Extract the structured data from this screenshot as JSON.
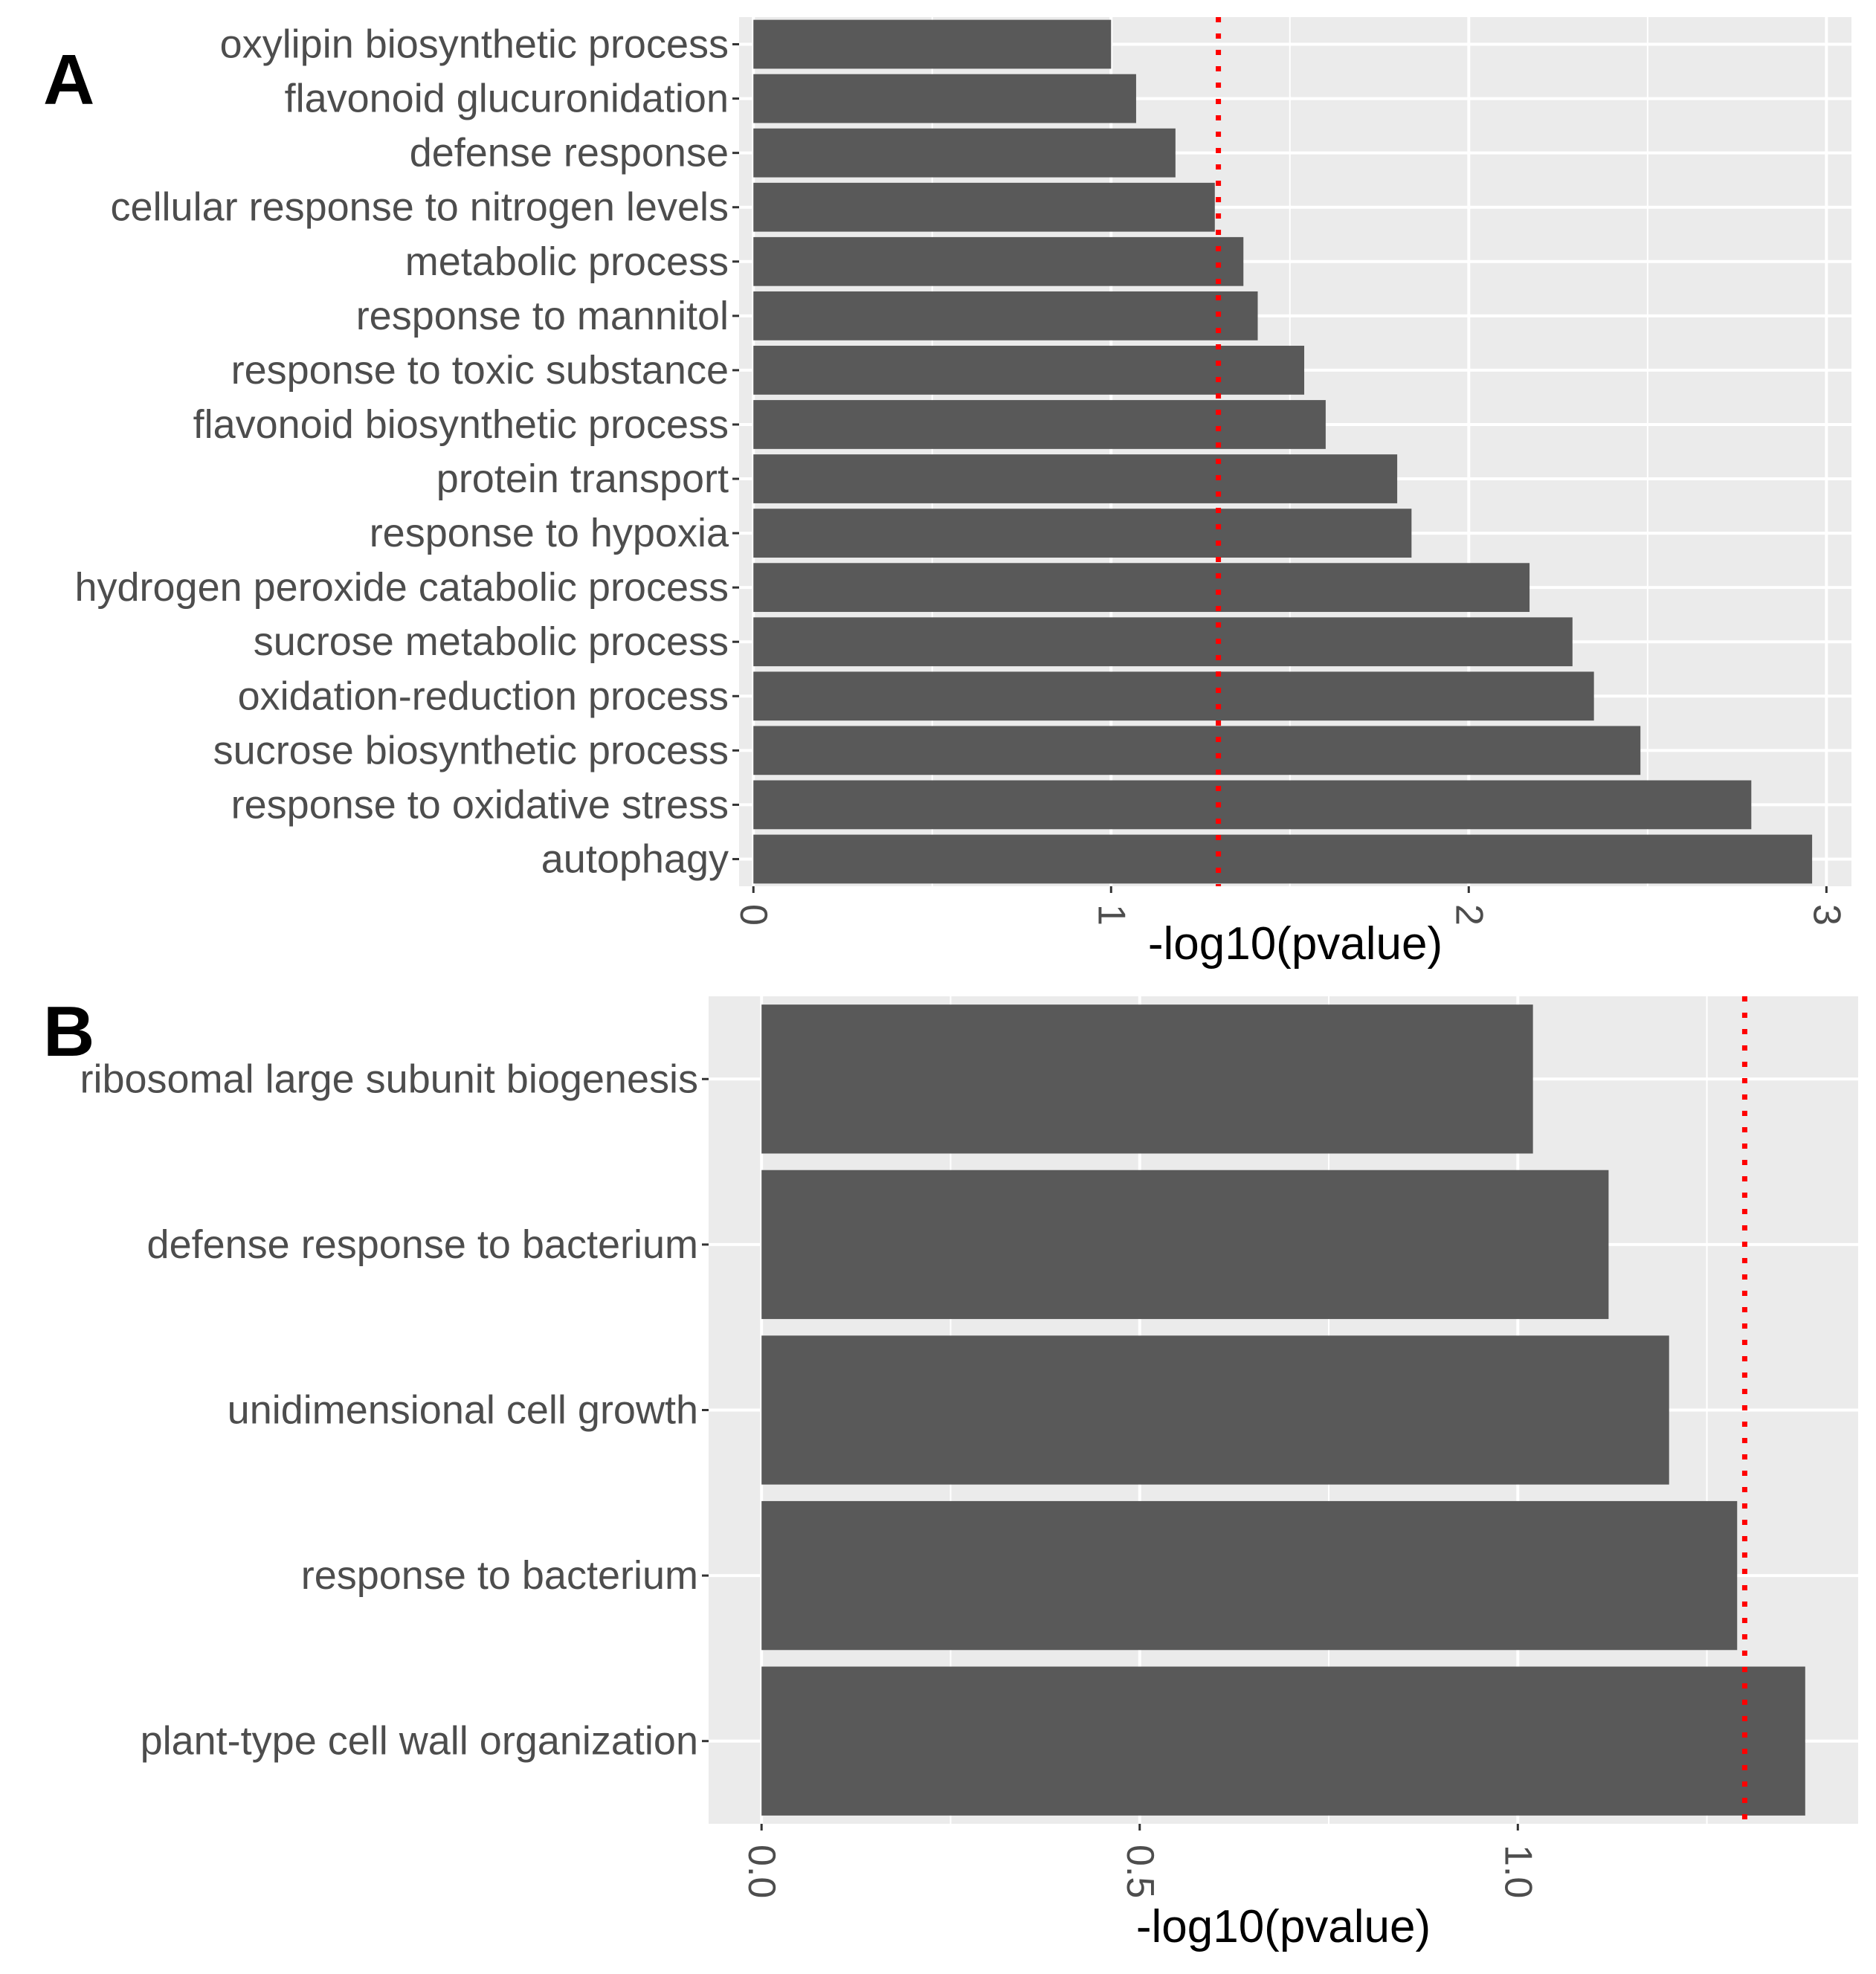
{
  "colors": {
    "panel_background": "#ebebeb",
    "grid": "#ffffff",
    "bar": "#595959",
    "threshold_line": "#ff0000",
    "label_text": "#4d4d4d",
    "title_text": "#000000"
  },
  "chart_data": [
    {
      "panel_letter": "A",
      "type": "bar",
      "orientation": "horizontal",
      "xlabel": "-log10(pvalue)",
      "ylabel": "",
      "xlim": [
        -0.04,
        3.07
      ],
      "xticks": [
        0,
        1,
        2,
        3
      ],
      "xtick_labels": [
        "0",
        "1",
        "2",
        "3"
      ],
      "grid": true,
      "threshold": 1.3,
      "categories": [
        "oxylipin biosynthetic process",
        "flavonoid glucuronidation",
        "defense response",
        "cellular response to nitrogen levels",
        "metabolic process",
        "response to mannitol",
        "response to toxic substance",
        "flavonoid biosynthetic process",
        "protein transport",
        "response to hypoxia",
        "hydrogen peroxide catabolic process",
        "sucrose metabolic process",
        "oxidation-reduction process",
        "sucrose biosynthetic process",
        "response to oxidative stress",
        "autophagy"
      ],
      "values": [
        1.0,
        1.07,
        1.18,
        1.29,
        1.37,
        1.41,
        1.54,
        1.6,
        1.8,
        1.84,
        2.17,
        2.29,
        2.35,
        2.48,
        2.79,
        2.96
      ]
    },
    {
      "panel_letter": "B",
      "type": "bar",
      "orientation": "horizontal",
      "xlabel": "-log10(pvalue)",
      "ylabel": "",
      "xlim": [
        -0.07,
        1.45
      ],
      "xticks": [
        0.0,
        0.5,
        1.0
      ],
      "xtick_labels": [
        "0.0",
        "0.5",
        "1.0"
      ],
      "grid": true,
      "threshold": 1.3,
      "categories": [
        "ribosomal large subunit biogenesis",
        "defense response to bacterium",
        "unidimensional cell growth",
        "response to bacterium",
        "plant-type cell wall organization"
      ],
      "values": [
        1.02,
        1.12,
        1.2,
        1.29,
        1.38
      ]
    }
  ]
}
